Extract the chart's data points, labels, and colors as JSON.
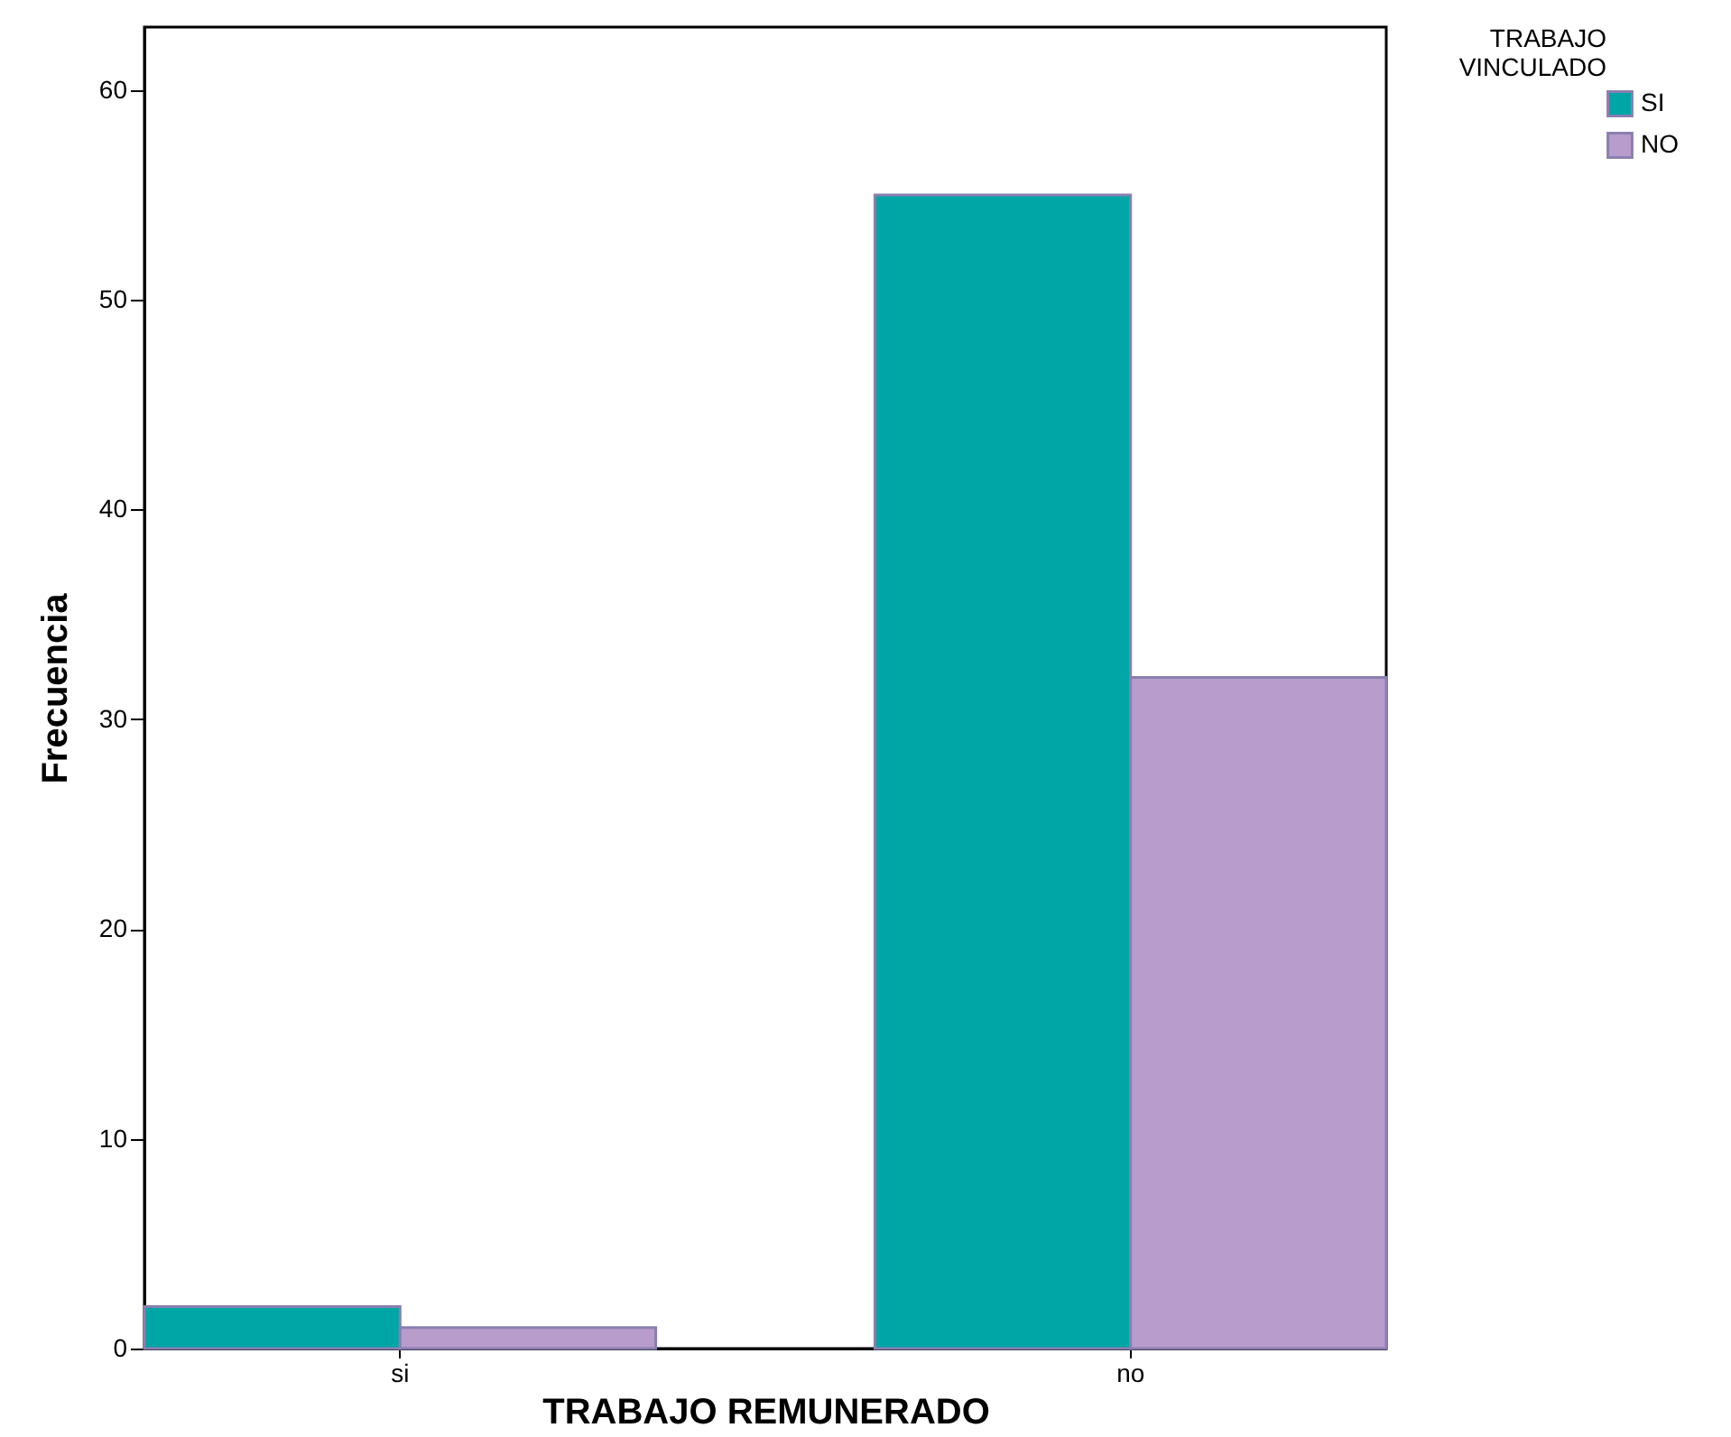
{
  "chart_data": {
    "type": "bar",
    "xlabel": "TRABAJO REMUNERADO",
    "ylabel": "Frecuencia",
    "legend_title": "TRABAJO VINCULADO",
    "categories": [
      "si",
      "no"
    ],
    "series": [
      {
        "name": "SI",
        "color": "#00a6a6",
        "values": [
          2,
          55
        ]
      },
      {
        "name": "NO",
        "color": "#b89ccb",
        "values": [
          1,
          32
        ]
      }
    ],
    "ylim": [
      0,
      63
    ],
    "yticks": [
      0,
      10,
      20,
      30,
      40,
      50,
      60
    ],
    "grid": false,
    "legend": "top right"
  }
}
